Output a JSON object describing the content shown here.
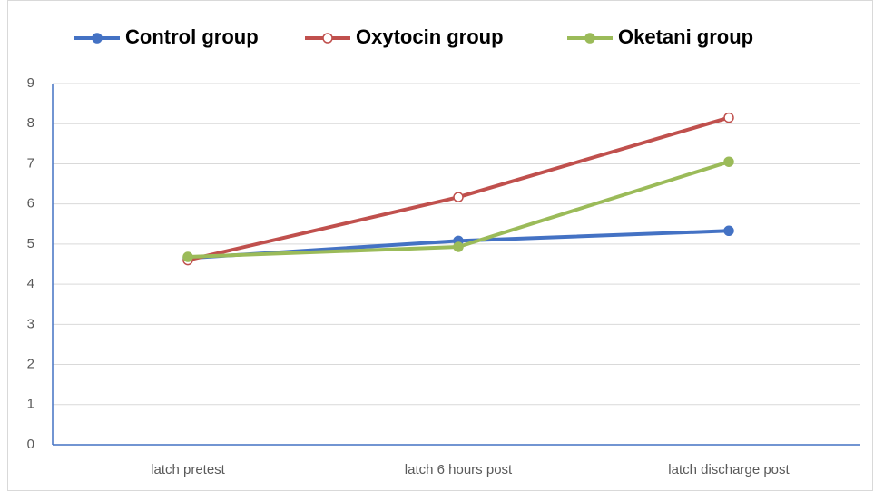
{
  "chart_data": {
    "type": "line",
    "categories": [
      "latch pretest",
      "latch 6 hours post",
      "latch discharge post"
    ],
    "series": [
      {
        "name": "Control group",
        "color": "#4472c4",
        "marker": "filled",
        "values": [
          4.65,
          5.08,
          5.33
        ]
      },
      {
        "name": "Oxytocin group",
        "color": "#c0504d",
        "marker": "hollow",
        "values": [
          4.6,
          6.17,
          8.15
        ]
      },
      {
        "name": "Oketani group",
        "color": "#9bbb59",
        "marker": "filled",
        "values": [
          4.68,
          4.93,
          7.05
        ]
      }
    ],
    "ylim": [
      0,
      9
    ],
    "yticks": [
      0,
      1,
      2,
      3,
      4,
      5,
      6,
      7,
      8,
      9
    ],
    "grid": true,
    "legend": "top"
  }
}
